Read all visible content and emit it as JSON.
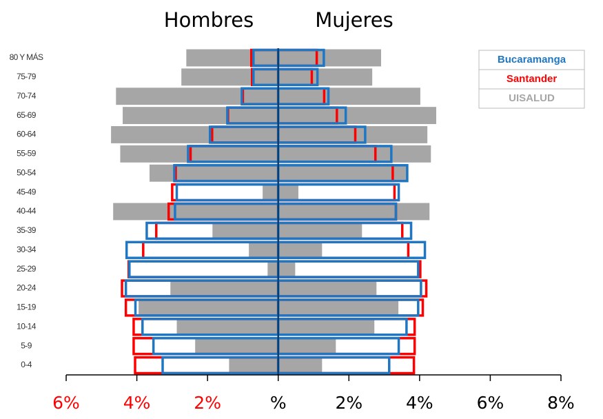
{
  "chart_data": {
    "type": "pyramid",
    "left_title": "Hombres",
    "right_title": "Mujeres",
    "categories": [
      "80 Y MÁS",
      "75-79",
      "70-74",
      "65-69",
      "60-64",
      "55-59",
      "50-54",
      "45-49",
      "40-44",
      "35-39",
      "30-34",
      "25-29",
      "20-24",
      "15-19",
      "10-14",
      "5-9",
      "0-4"
    ],
    "series": [
      {
        "name": "UISALUD",
        "color": "#a6a6a6",
        "style": "fill",
        "male": [
          2.61,
          2.75,
          4.6,
          4.41,
          4.74,
          4.48,
          3.65,
          0.45,
          4.68,
          1.87,
          0.84,
          0.31,
          3.06,
          3.96,
          2.88,
          2.36,
          1.4
        ],
        "female": [
          2.92,
          2.67,
          4.03,
          4.48,
          4.23,
          4.33,
          3.68,
          0.58,
          4.29,
          2.38,
          1.25,
          0.49,
          2.79,
          3.41,
          2.73,
          1.64,
          1.25
        ]
      },
      {
        "name": "Santander",
        "color": "#ff0000",
        "style": "outline",
        "male": [
          0.76,
          0.74,
          1.0,
          1.42,
          1.87,
          2.48,
          2.9,
          3.0,
          3.1,
          3.45,
          3.82,
          4.23,
          4.42,
          4.31,
          4.09,
          4.09,
          4.05
        ],
        "female": [
          1.09,
          0.95,
          1.3,
          1.66,
          2.18,
          2.75,
          3.24,
          3.29,
          3.33,
          3.51,
          3.68,
          4.02,
          4.19,
          4.09,
          3.86,
          3.86,
          3.84
        ]
      },
      {
        "name": "Bucaramanga",
        "color": "#1f77c4",
        "style": "outline",
        "male": [
          0.7,
          0.7,
          1.03,
          1.44,
          1.93,
          2.55,
          2.94,
          2.87,
          2.92,
          3.72,
          4.29,
          4.21,
          4.31,
          4.04,
          3.84,
          3.53,
          3.27
        ],
        "female": [
          1.29,
          1.11,
          1.42,
          1.91,
          2.46,
          3.2,
          3.65,
          3.41,
          3.33,
          3.76,
          4.15,
          3.96,
          4.04,
          3.96,
          3.63,
          3.41,
          3.14
        ]
      }
    ],
    "legend_order": [
      2,
      1,
      0
    ],
    "legend_position": "upper right",
    "xlim": [
      -6,
      8
    ],
    "xticks": [
      {
        "value": -6,
        "label": "6%"
      },
      {
        "value": -4,
        "label": "4%"
      },
      {
        "value": -2,
        "label": "2%"
      },
      {
        "value": 0,
        "label": "%"
      },
      {
        "value": 2,
        "label": "2%"
      },
      {
        "value": 4,
        "label": "4%"
      },
      {
        "value": 6,
        "label": "6%"
      },
      {
        "value": 8,
        "label": "8%"
      }
    ],
    "negative_tick_color": "#ff0000",
    "positive_tick_color": "#000000",
    "center_line_color": "#0b3c6e"
  }
}
